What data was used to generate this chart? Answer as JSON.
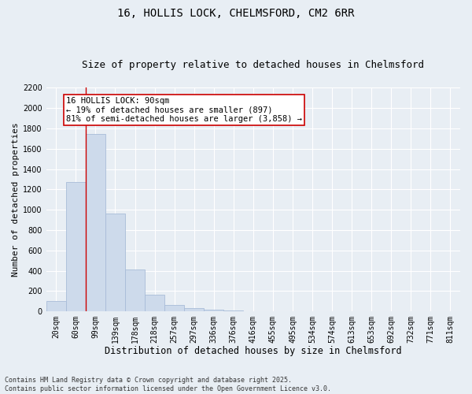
{
  "title_line1": "16, HOLLIS LOCK, CHELMSFORD, CM2 6RR",
  "title_line2": "Size of property relative to detached houses in Chelmsford",
  "xlabel": "Distribution of detached houses by size in Chelmsford",
  "ylabel": "Number of detached properties",
  "bin_labels": [
    "20sqm",
    "60sqm",
    "99sqm",
    "139sqm",
    "178sqm",
    "218sqm",
    "257sqm",
    "297sqm",
    "336sqm",
    "376sqm",
    "416sqm",
    "455sqm",
    "495sqm",
    "534sqm",
    "574sqm",
    "613sqm",
    "653sqm",
    "692sqm",
    "732sqm",
    "771sqm",
    "811sqm"
  ],
  "bar_values": [
    100,
    1270,
    1750,
    960,
    415,
    165,
    65,
    30,
    20,
    10,
    2,
    0,
    0,
    0,
    0,
    0,
    0,
    0,
    0,
    0,
    0
  ],
  "bar_color": "#cddaeb",
  "bar_edgecolor": "#a8bcd8",
  "vline_x": 1.5,
  "vline_color": "#cc0000",
  "annotation_text": "16 HOLLIS LOCK: 90sqm\n← 19% of detached houses are smaller (897)\n81% of semi-detached houses are larger (3,858) →",
  "annotation_box_edgecolor": "#cc0000",
  "annotation_box_facecolor": "#ffffff",
  "ylim": [
    0,
    2200
  ],
  "yticks": [
    0,
    200,
    400,
    600,
    800,
    1000,
    1200,
    1400,
    1600,
    1800,
    2000,
    2200
  ],
  "background_color": "#e8eef4",
  "plot_background": "#e8eef4",
  "grid_color": "#ffffff",
  "footnote": "Contains HM Land Registry data © Crown copyright and database right 2025.\nContains public sector information licensed under the Open Government Licence v3.0.",
  "title_fontsize": 10,
  "subtitle_fontsize": 9,
  "xlabel_fontsize": 8.5,
  "ylabel_fontsize": 8,
  "tick_fontsize": 7,
  "annotation_fontsize": 7.5,
  "footnote_fontsize": 6
}
